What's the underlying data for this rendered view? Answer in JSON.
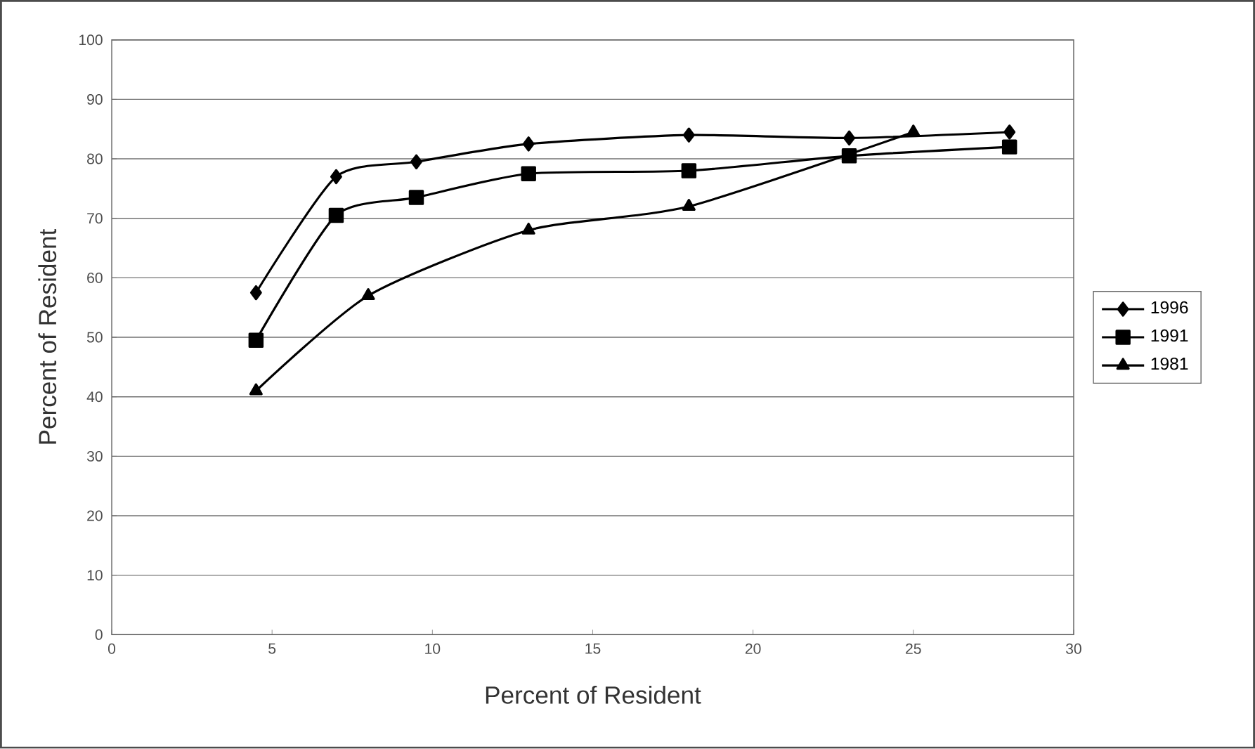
{
  "chart_data": {
    "type": "line",
    "xlabel": "Percent of Resident",
    "ylabel": "Percent of Resident",
    "xlim": [
      0,
      30
    ],
    "xticks": [
      0,
      5,
      10,
      15,
      20,
      25,
      30
    ],
    "ylim": [
      0,
      100
    ],
    "yticks": [
      0,
      10,
      20,
      30,
      40,
      50,
      60,
      70,
      80,
      90,
      100
    ],
    "grid": "y",
    "legend": "right",
    "series": [
      {
        "name": "1996",
        "color": "#000000",
        "marker": "diamond",
        "x": [
          4.5,
          7,
          9.5,
          13,
          18,
          23,
          28
        ],
        "values": [
          57.5,
          77,
          79.5,
          82.5,
          84,
          83.5,
          84.5
        ]
      },
      {
        "name": "1991",
        "color": "#000000",
        "marker": "square",
        "x": [
          4.5,
          7,
          9.5,
          13,
          18,
          23,
          28
        ],
        "values": [
          49.5,
          70.5,
          73.5,
          77.5,
          78,
          80.5,
          82
        ]
      },
      {
        "name": "1981",
        "color": "#000000",
        "marker": "triangle",
        "x": [
          4.5,
          8,
          13,
          18,
          25
        ],
        "values": [
          41,
          57,
          68,
          72,
          84.5
        ]
      }
    ]
  }
}
